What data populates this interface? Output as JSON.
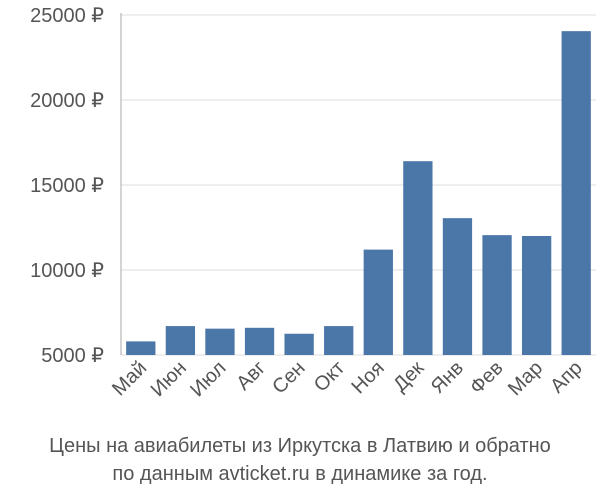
{
  "chart_data": {
    "type": "bar",
    "categories": [
      "Май",
      "Июн",
      "Июл",
      "Авг",
      "Сен",
      "Окт",
      "Ноя",
      "Дек",
      "Янв",
      "Фев",
      "Мар",
      "Апр"
    ],
    "values": [
      5800,
      6700,
      6550,
      6600,
      6250,
      6700,
      11200,
      16400,
      13050,
      12050,
      12000,
      24050
    ],
    "ylim": [
      5000,
      25000
    ],
    "yticks": [
      5000,
      10000,
      15000,
      20000,
      25000
    ],
    "ytick_labels": [
      "5000 ₽",
      "10000 ₽",
      "15000 ₽",
      "20000 ₽",
      "25000 ₽"
    ],
    "grid": true,
    "bar_color": "#4a76a8",
    "grid_color": "#dddddd",
    "axis_color": "#aaaaaa",
    "label_color": "#555555"
  },
  "caption": {
    "line1": "Цены на авиабилеты из Иркутска в Латвию и обратно",
    "line2": "по данным avticket.ru в динамике за год."
  }
}
